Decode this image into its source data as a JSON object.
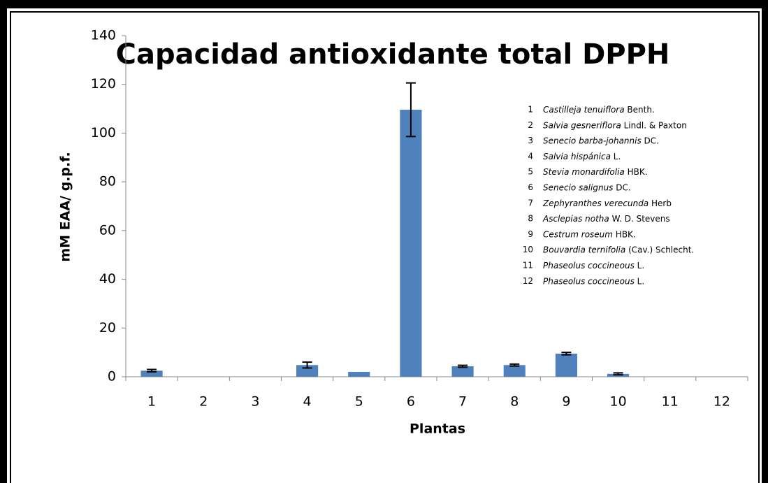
{
  "chart_data": {
    "type": "bar",
    "title": "Capacidad antioxidante total DPPH",
    "xlabel": "Plantas",
    "ylabel": "mM EAA/ g.p.f.",
    "categories": [
      "1",
      "2",
      "3",
      "4",
      "5",
      "6",
      "7",
      "8",
      "9",
      "10",
      "11",
      "12"
    ],
    "values": [
      2.5,
      0,
      0,
      4.8,
      2.0,
      109.6,
      4.3,
      4.8,
      9.5,
      1.2,
      0,
      0
    ],
    "errors": [
      0.5,
      0,
      0,
      1.2,
      0,
      11,
      0.4,
      0.4,
      0.5,
      0.4,
      0,
      0
    ],
    "color": "#4f81bd",
    "ylim": [
      0,
      140
    ],
    "yticks": [
      0,
      20,
      40,
      60,
      80,
      100,
      120,
      140
    ],
    "legend": [
      {
        "number": "1",
        "species": "Castilleja tenuiflora",
        "authority": "Benth."
      },
      {
        "number": "2",
        "species": "Salvia gesneriflora",
        "authority": "Lindl. & Paxton"
      },
      {
        "number": "3",
        "species": "Senecio barba-johannis",
        "authority": "DC."
      },
      {
        "number": "4",
        "species": "Salvia hispánica",
        "authority": "L."
      },
      {
        "number": "5",
        "species": "Stevia monardifolia",
        "authority": "HBK."
      },
      {
        "number": "6",
        "species": "Senecio salignus",
        "authority": "DC."
      },
      {
        "number": "7",
        "species": "Zephyranthes verecunda",
        "authority": "Herb"
      },
      {
        "number": "8",
        "species": "Asclepias notha",
        "authority": "W. D. Stevens"
      },
      {
        "number": "9",
        "species": "Cestrum roseum",
        "authority": "HBK."
      },
      {
        "number": "10",
        "species": "Bouvardia ternifolia",
        "authority": "(Cav.) Schlecht."
      },
      {
        "number": "11",
        "species": "Phaseolus coccineous",
        "authority": "L."
      },
      {
        "number": "12",
        "species": "Phaseolus coccineous",
        "authority": "L."
      }
    ]
  }
}
